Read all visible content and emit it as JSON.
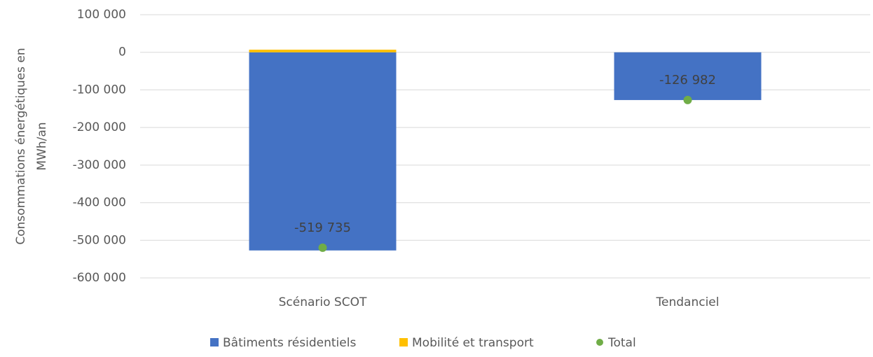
{
  "chart_data": {
    "type": "stacked_bar",
    "y_label_lines": [
      "Consommations énergétiques en",
      "MWh/an"
    ],
    "categories": [
      "Scénario SCOT",
      "Tendanciel"
    ],
    "series": [
      {
        "name": "Bâtiments résidentiels",
        "color": "#4472c4",
        "values": [
          -527000,
          -126982
        ]
      },
      {
        "name": "Mobilité et transport",
        "color": "#ffc000",
        "values": [
          7000,
          0
        ]
      }
    ],
    "total": {
      "name": "Total",
      "color": "#70ad47",
      "values": [
        -519735,
        -126982
      ],
      "value_labels": [
        "-519 735",
        "-126 982"
      ]
    },
    "ylim": [
      -600000,
      100000
    ],
    "yticks": [
      {
        "value": 100000,
        "label": "100 000"
      },
      0,
      {
        "value": -100000,
        "label": "-100 000"
      },
      {
        "value": -200000,
        "label": "-200 000"
      },
      {
        "value": -300000,
        "label": "-300 000"
      },
      {
        "value": -400000,
        "label": "-400 000"
      },
      {
        "value": -500000,
        "label": "-500 000"
      },
      {
        "value": -600000,
        "label": "-600 000"
      }
    ],
    "grid": true
  }
}
